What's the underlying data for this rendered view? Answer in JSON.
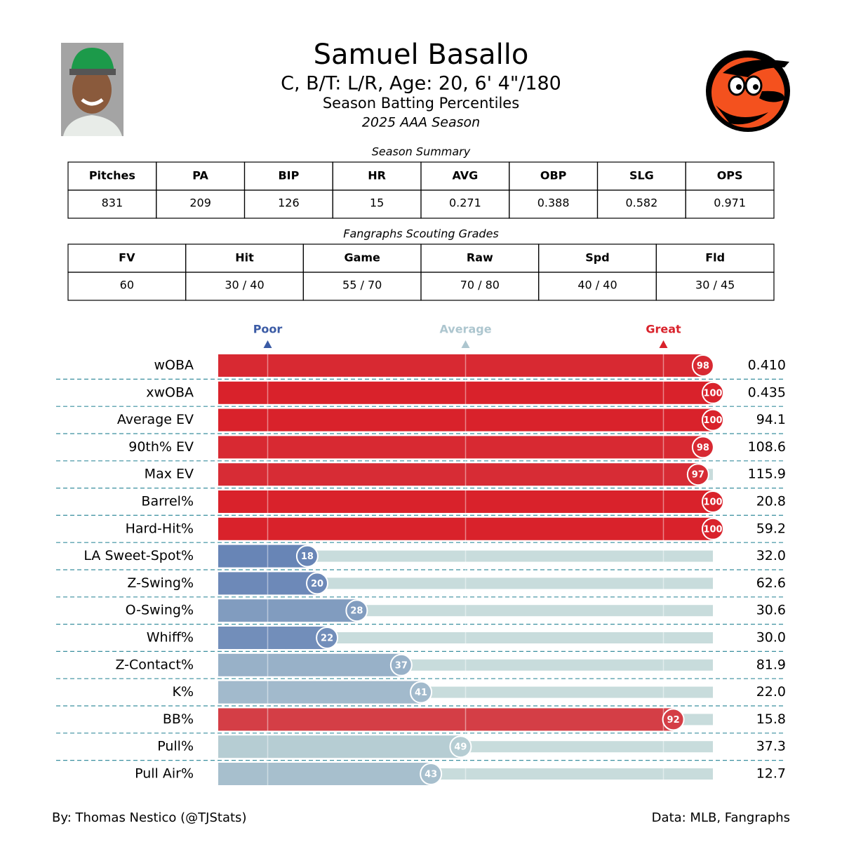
{
  "header": {
    "title": "Samuel Basallo",
    "subtitle": "C, B/T: L/R, Age: 20, 6' 4\"/180",
    "description": "Season Batting Percentiles",
    "season": "2025 AAA Season"
  },
  "season_summary": {
    "title": "Season Summary",
    "columns": [
      "Pitches",
      "PA",
      "BIP",
      "HR",
      "AVG",
      "OBP",
      "SLG",
      "OPS"
    ],
    "values": [
      "831",
      "209",
      "126",
      "15",
      "0.271",
      "0.388",
      "0.582",
      "0.971"
    ]
  },
  "scouting_grades": {
    "title": "Fangraphs Scouting Grades",
    "columns": [
      "FV",
      "Hit",
      "Game",
      "Raw",
      "Spd",
      "Fld"
    ],
    "values": [
      "60",
      "30 / 40",
      "55 / 70",
      "70 / 80",
      "40 / 40",
      "30 / 45"
    ]
  },
  "chart_data": {
    "type": "percentile_bar",
    "categories": [
      "wOBA",
      "xwOBA",
      "Average EV",
      "90th% EV",
      "Max EV",
      "Barrel%",
      "Hard-Hit%",
      "LA Sweet-Spot%",
      "Z-Swing%",
      "O-Swing%",
      "Whiff%",
      "Z-Contact%",
      "K%",
      "BB%",
      "Pull%",
      "Pull Air%"
    ],
    "values": [
      98,
      100,
      100,
      98,
      97,
      100,
      100,
      18,
      20,
      28,
      22,
      37,
      41,
      92,
      49,
      43
    ],
    "stat_labels": [
      "0.410",
      "0.435",
      "94.1",
      "108.6",
      "115.9",
      "20.8",
      "59.2",
      "32.0",
      "62.6",
      "30.6",
      "30.0",
      "81.9",
      "22.0",
      "15.8",
      "37.3",
      "12.7"
    ],
    "xlim": [
      0,
      100
    ],
    "markers": [
      {
        "label": "Poor",
        "value": 10,
        "color": "#3b5ba5"
      },
      {
        "label": "Average",
        "value": 50,
        "color": "#adc6cf"
      },
      {
        "label": "Great",
        "value": 90,
        "color": "#d9222b"
      }
    ],
    "colormap": [
      "#3b5ba5",
      "#b8cfd4",
      "#d9222b"
    ],
    "track_color": "#c8dcdc"
  },
  "footer": {
    "credit": "By: Thomas Nestico (@TJStats)",
    "source": "Data: MLB, Fangraphs"
  }
}
